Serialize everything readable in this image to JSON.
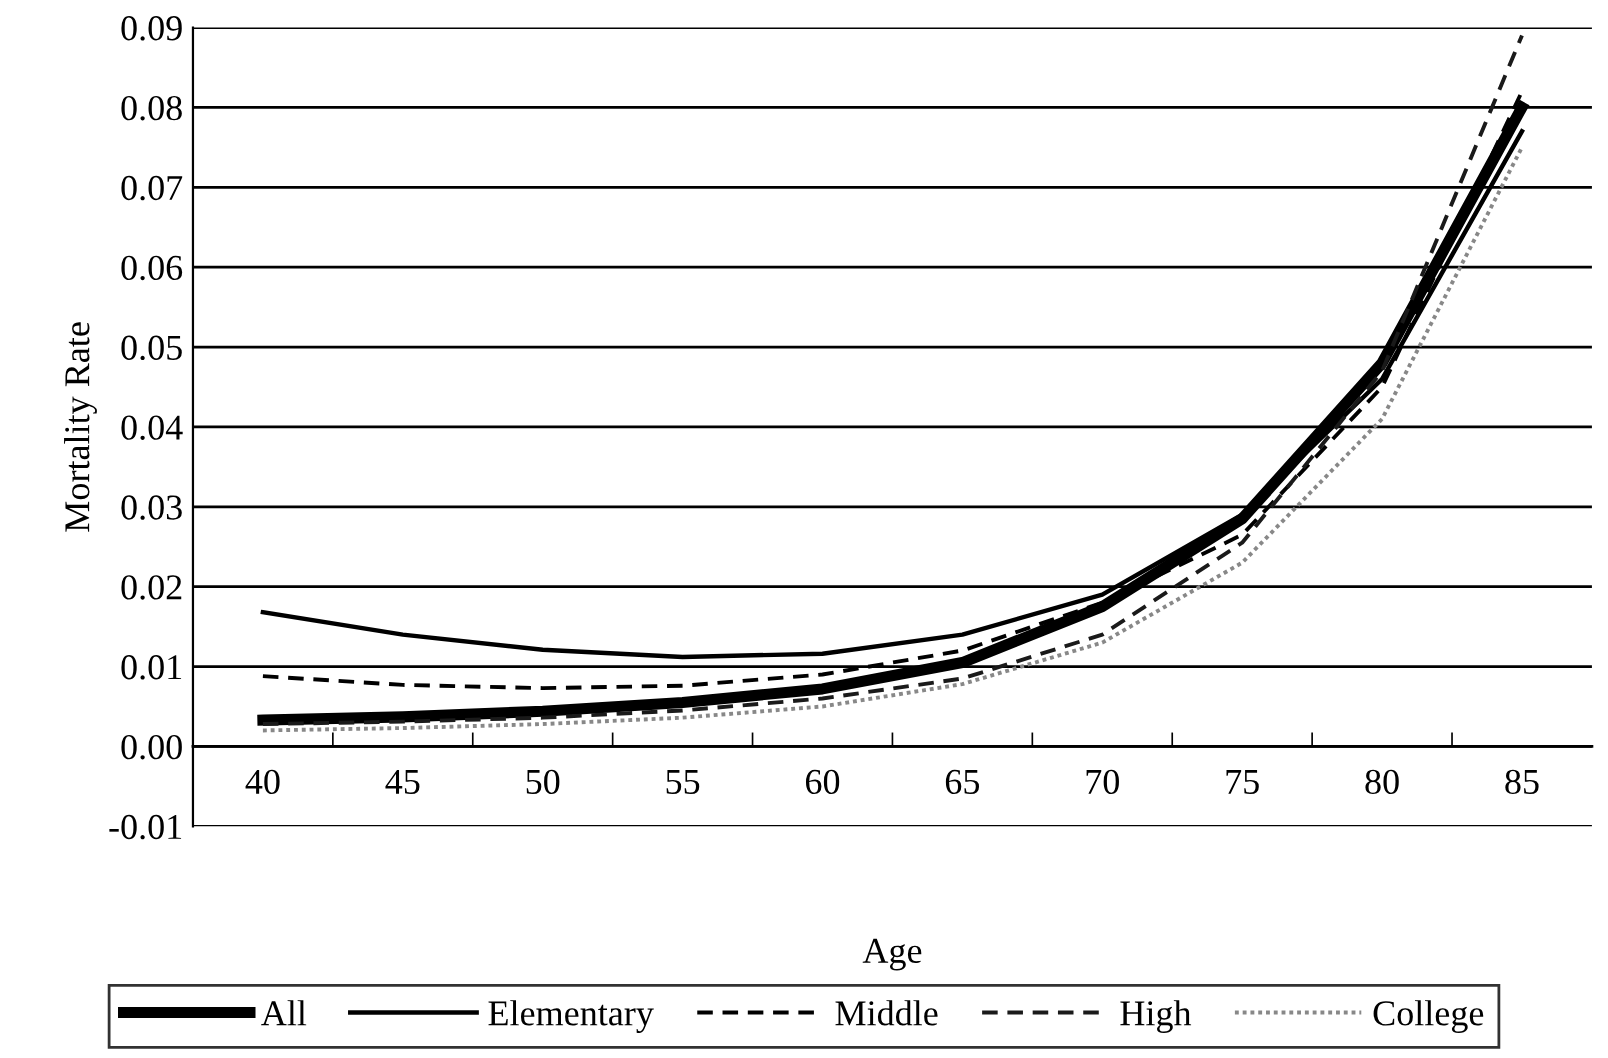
{
  "chart_data": {
    "type": "line",
    "xlabel": "Age",
    "ylabel": "Mortality Rate",
    "categories": [
      "40",
      "45",
      "50",
      "55",
      "60",
      "65",
      "70",
      "75",
      "80",
      "85"
    ],
    "ylim": [
      -0.01,
      0.09
    ],
    "yticks": [
      {
        "value": -0.01,
        "label": "-0.01"
      },
      {
        "value": 0,
        "label": "0.00"
      },
      {
        "value": 0.01,
        "label": "0.01"
      },
      {
        "value": 0.02,
        "label": "0.02"
      },
      {
        "value": 0.03,
        "label": "0.03"
      },
      {
        "value": 0.04,
        "label": "0.04"
      },
      {
        "value": 0.05,
        "label": "0.05"
      },
      {
        "value": 0.06,
        "label": "0.06"
      },
      {
        "value": 0.07,
        "label": "0.07"
      },
      {
        "value": 0.08,
        "label": "0.08"
      },
      {
        "value": 0.09,
        "label": "0.09"
      }
    ],
    "grid": "y",
    "legend": "bottom",
    "marker": "none",
    "series": [
      {
        "name": "All",
        "color": "#000000",
        "line_style": "solid",
        "values": [
          0.0033,
          0.0037,
          0.0044,
          0.0055,
          0.0072,
          0.0105,
          0.0175,
          0.0285,
          0.048,
          0.08
        ]
      },
      {
        "name": "Elementary",
        "color": "#000000",
        "line_style": "solid",
        "values": [
          0.0168,
          0.014,
          0.0121,
          0.0112,
          0.0116,
          0.014,
          0.019,
          0.029,
          0.046,
          0.077
        ]
      },
      {
        "name": "Middle",
        "color": "#000000",
        "line_style": "dashed",
        "values": [
          0.0088,
          0.0077,
          0.0073,
          0.0076,
          0.009,
          0.012,
          0.018,
          0.0265,
          0.045,
          0.082
        ]
      },
      {
        "name": "High",
        "color": "#1a1a1a",
        "line_style": "dashed",
        "values": [
          0.0028,
          0.0031,
          0.0036,
          0.0045,
          0.006,
          0.0085,
          0.014,
          0.0255,
          0.047,
          0.089
        ]
      },
      {
        "name": "College",
        "color": "#888888",
        "line_style": "dotted",
        "values": [
          0.002,
          0.0023,
          0.0028,
          0.0036,
          0.005,
          0.0078,
          0.013,
          0.023,
          0.041,
          0.075
        ]
      }
    ]
  }
}
